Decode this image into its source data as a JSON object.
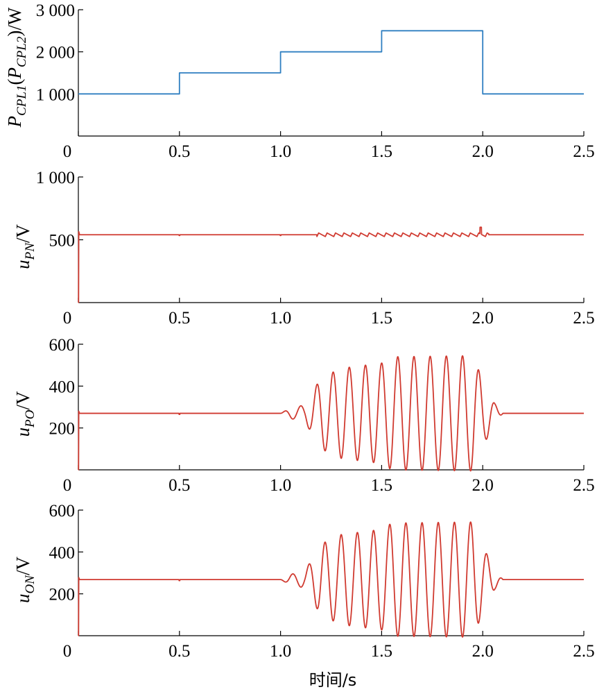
{
  "chart_data": [
    {
      "type": "line",
      "ylabel_parts": [
        {
          "text": "P",
          "style": "italic"
        },
        {
          "text": "CPL1",
          "style": "italic-sub"
        },
        {
          "text": "(",
          "style": "upright"
        },
        {
          "text": "P",
          "style": "italic"
        },
        {
          "text": "CPL2",
          "style": "italic-sub"
        },
        {
          "text": ")/W",
          "style": "upright"
        }
      ],
      "xlim": [
        0,
        2.5
      ],
      "ylim": [
        0,
        3000
      ],
      "xticks": [
        0,
        0.5,
        1.0,
        1.5,
        2.0,
        2.5
      ],
      "xtick_labels": [
        "0",
        "0.5",
        "1.0",
        "1.5",
        "2.0",
        "2.5"
      ],
      "yticks": [
        1000,
        2000,
        3000
      ],
      "ytick_labels": [
        "1 000",
        "2 000",
        "3 000"
      ],
      "color": "#2f7fc1",
      "signal": {
        "kind": "steps",
        "points": [
          [
            0,
            1000
          ],
          [
            0.5,
            1000
          ],
          [
            0.5,
            1500
          ],
          [
            1.0,
            1500
          ],
          [
            1.0,
            2000
          ],
          [
            1.5,
            2000
          ],
          [
            1.5,
            2500
          ],
          [
            2.0,
            2500
          ],
          [
            2.0,
            1000
          ],
          [
            2.5,
            1000
          ]
        ]
      }
    },
    {
      "type": "line",
      "ylabel_parts": [
        {
          "text": "u",
          "style": "italic"
        },
        {
          "text": "PN",
          "style": "italic-sub"
        },
        {
          "text": "/V",
          "style": "upright"
        }
      ],
      "xlim": [
        0,
        2.5
      ],
      "ylim": [
        0,
        1000
      ],
      "xticks": [
        0,
        0.5,
        1.0,
        1.5,
        2.0,
        2.5
      ],
      "xtick_labels": [
        "0",
        "0.5",
        "1.0",
        "1.5",
        "2.0",
        "2.5"
      ],
      "yticks": [
        500,
        1000
      ],
      "ytick_labels": [
        "500",
        "1 000"
      ],
      "color": "#d03a30",
      "signal": {
        "kind": "ripple",
        "base": 540,
        "start_spike": true,
        "ripple_start": 1.18,
        "ripple_end": 2.03,
        "ripple_freq": 24,
        "ripple_amp": 14,
        "end_spike": [
          1.99,
          600
        ]
      }
    },
    {
      "type": "line",
      "ylabel_parts": [
        {
          "text": "u",
          "style": "italic"
        },
        {
          "text": "PO",
          "style": "italic-sub"
        },
        {
          "text": "/V",
          "style": "upright"
        }
      ],
      "xlim": [
        0,
        2.5
      ],
      "ylim": [
        0,
        600
      ],
      "xticks": [
        0,
        0.5,
        1.0,
        1.5,
        2.0,
        2.5
      ],
      "xtick_labels": [
        "0",
        "0.5",
        "1.0",
        "1.5",
        "2.0",
        "2.5"
      ],
      "yticks": [
        200,
        400,
        600
      ],
      "ytick_labels": [
        "200",
        "400",
        "600"
      ],
      "color": "#d03a30",
      "signal": {
        "kind": "oscillation",
        "base": 270,
        "start_spike": true,
        "osc_start": 1.0,
        "osc_end": 2.1,
        "freq": 12.5,
        "phase": 0.0,
        "envelope": [
          [
            1.0,
            0
          ],
          [
            1.05,
            25
          ],
          [
            1.12,
            40
          ],
          [
            1.2,
            170
          ],
          [
            1.3,
            215
          ],
          [
            1.5,
            240
          ],
          [
            1.55,
            270
          ],
          [
            1.95,
            275
          ],
          [
            2.0,
            160
          ],
          [
            2.06,
            45
          ],
          [
            2.1,
            0
          ]
        ]
      }
    },
    {
      "type": "line",
      "ylabel_parts": [
        {
          "text": "u",
          "style": "italic"
        },
        {
          "text": "ON",
          "style": "italic-sub"
        },
        {
          "text": "/V",
          "style": "upright"
        }
      ],
      "xlim": [
        0,
        2.5
      ],
      "ylim": [
        0,
        600
      ],
      "xticks": [
        0,
        0.5,
        1.0,
        1.5,
        2.0,
        2.5
      ],
      "xtick_labels": [
        "0",
        "0.5",
        "1.0",
        "1.5",
        "2.0",
        "2.5"
      ],
      "yticks": [
        200,
        400,
        600
      ],
      "ytick_labels": [
        "200",
        "400",
        "600"
      ],
      "color": "#d03a30",
      "signal": {
        "kind": "oscillation",
        "base": 268,
        "start_spike": true,
        "osc_start": 1.0,
        "osc_end": 2.1,
        "freq": 12.5,
        "phase": 3.14159,
        "envelope": [
          [
            1.0,
            0
          ],
          [
            1.05,
            25
          ],
          [
            1.12,
            40
          ],
          [
            1.2,
            170
          ],
          [
            1.3,
            215
          ],
          [
            1.5,
            240
          ],
          [
            1.55,
            270
          ],
          [
            1.95,
            275
          ],
          [
            2.0,
            160
          ],
          [
            2.06,
            45
          ],
          [
            2.1,
            0
          ]
        ]
      }
    }
  ],
  "xlabel": "时间/s"
}
